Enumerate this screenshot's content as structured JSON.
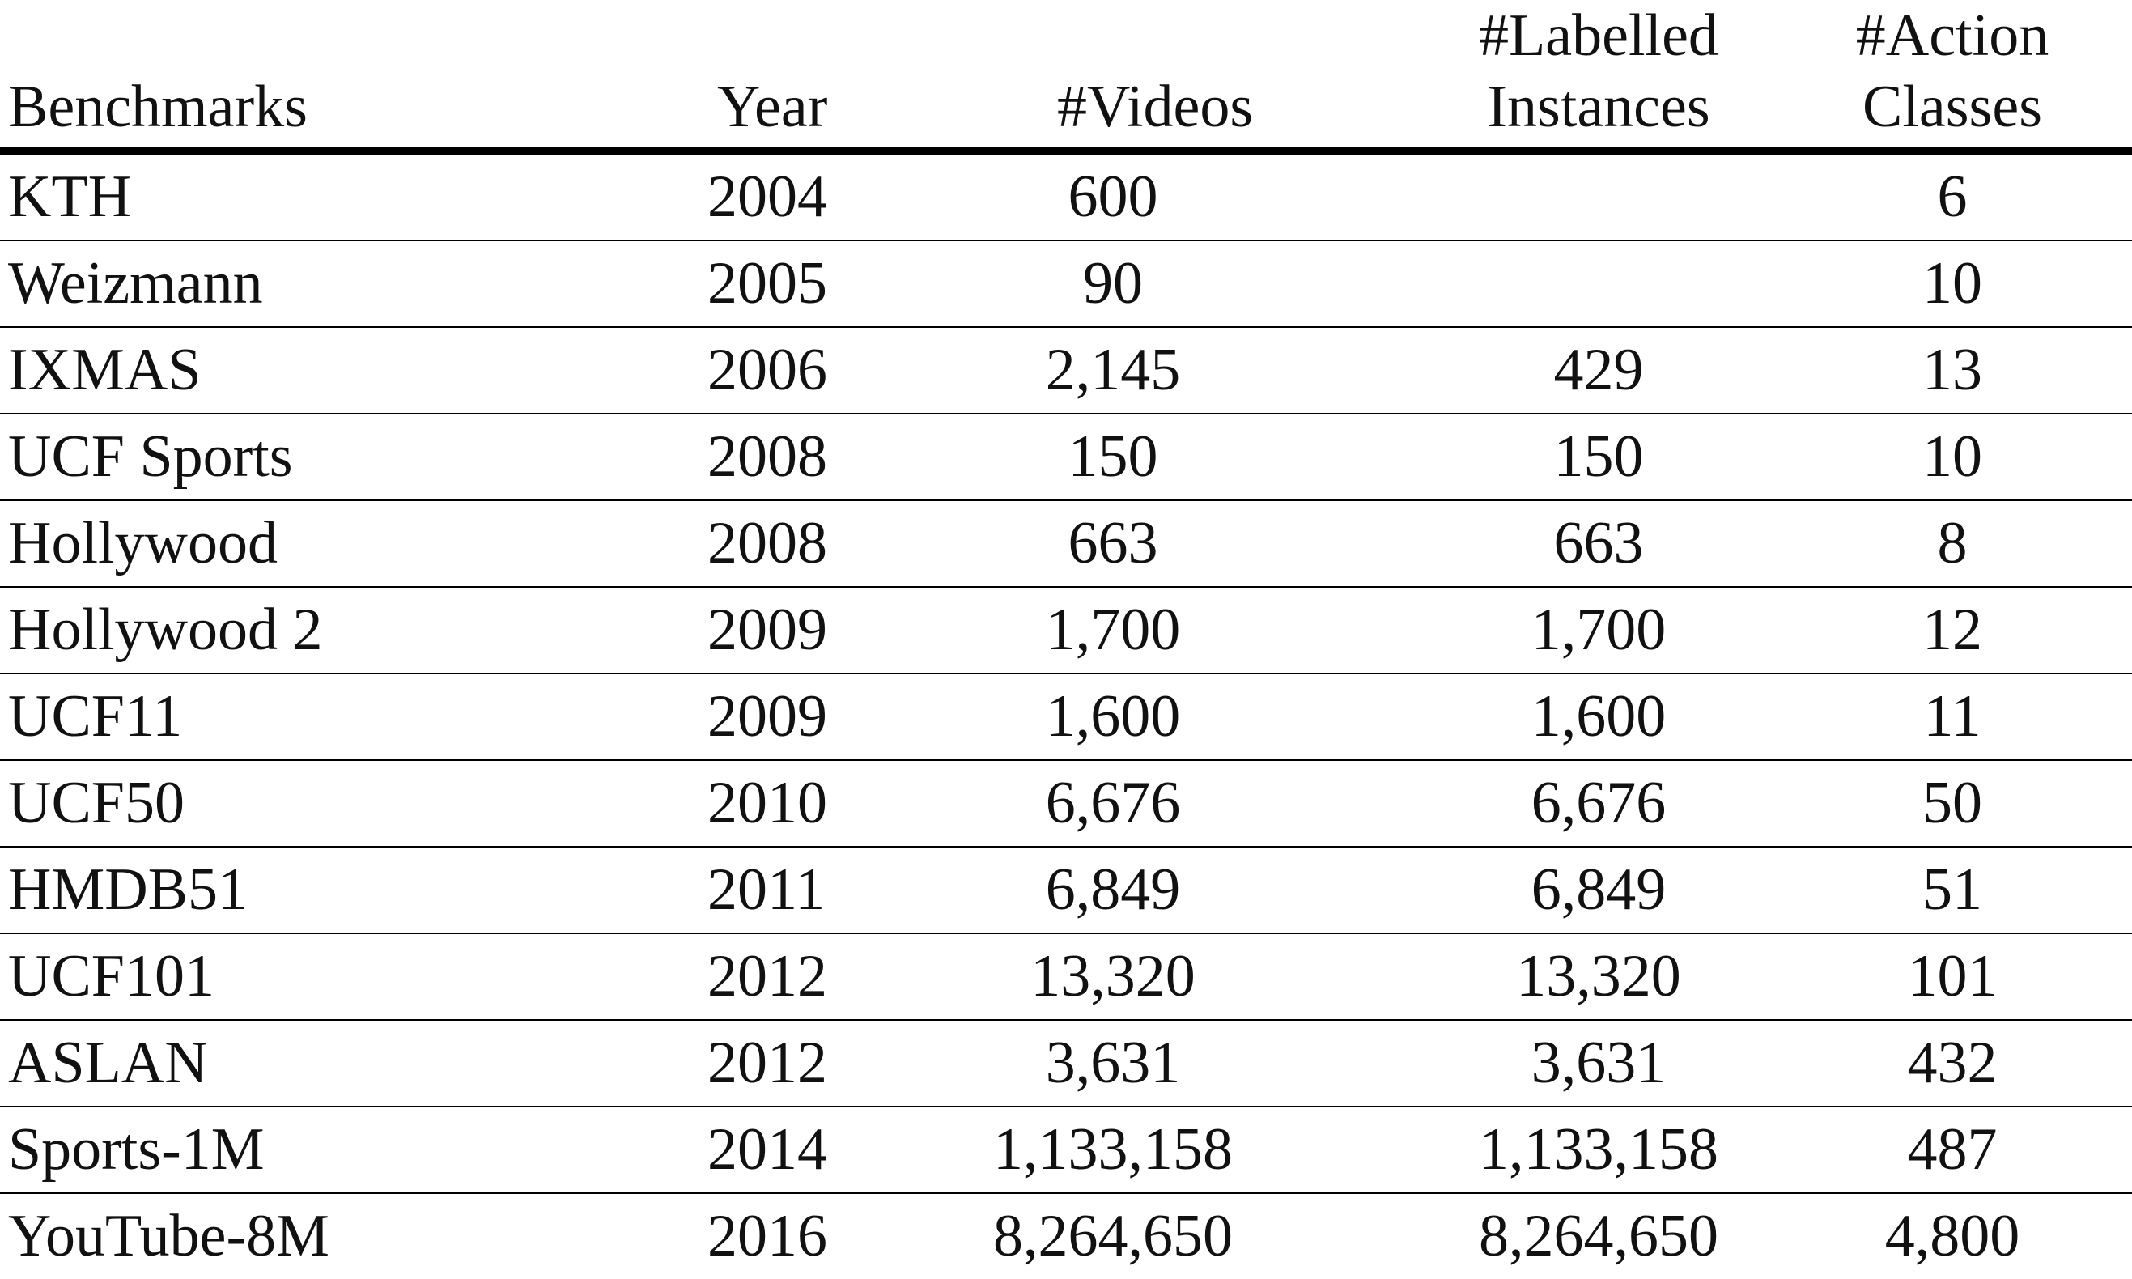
{
  "table": {
    "headers": {
      "benchmarks": "Benchmarks",
      "year": "Year",
      "videos": "#Videos",
      "labelled_line1": "#Labelled",
      "labelled_line2": "Instances",
      "classes_line1": "#Action",
      "classes_line2": "Classes"
    },
    "rows": [
      {
        "name": "KTH",
        "year": "2004",
        "videos": "600",
        "instances": "",
        "classes": "6"
      },
      {
        "name": "Weizmann",
        "year": "2005",
        "videos": "90",
        "instances": "",
        "classes": "10"
      },
      {
        "name": "IXMAS",
        "year": "2006",
        "videos": "2,145",
        "instances": "429",
        "classes": "13"
      },
      {
        "name": "UCF Sports",
        "year": "2008",
        "videos": "150",
        "instances": "150",
        "classes": "10"
      },
      {
        "name": "Hollywood",
        "year": "2008",
        "videos": "663",
        "instances": "663",
        "classes": "8"
      },
      {
        "name": "Hollywood 2",
        "year": "2009",
        "videos": "1,700",
        "instances": "1,700",
        "classes": "12"
      },
      {
        "name": "UCF11",
        "year": "2009",
        "videos": "1,600",
        "instances": "1,600",
        "classes": "11"
      },
      {
        "name": "UCF50",
        "year": "2010",
        "videos": "6,676",
        "instances": "6,676",
        "classes": "50"
      },
      {
        "name": "HMDB51",
        "year": "2011",
        "videos": "6,849",
        "instances": "6,849",
        "classes": "51"
      },
      {
        "name": "UCF101",
        "year": "2012",
        "videos": "13,320",
        "instances": "13,320",
        "classes": "101"
      },
      {
        "name": "ASLAN",
        "year": "2012",
        "videos": "3,631",
        "instances": "3,631",
        "classes": "432"
      },
      {
        "name": "Sports-1M",
        "year": "2014",
        "videos": "1,133,158",
        "instances": "1,133,158",
        "classes": "487"
      },
      {
        "name": "YouTube-8M",
        "year": "2016",
        "videos": "8,264,650",
        "instances": "8,264,650",
        "classes": "4,800"
      }
    ]
  }
}
